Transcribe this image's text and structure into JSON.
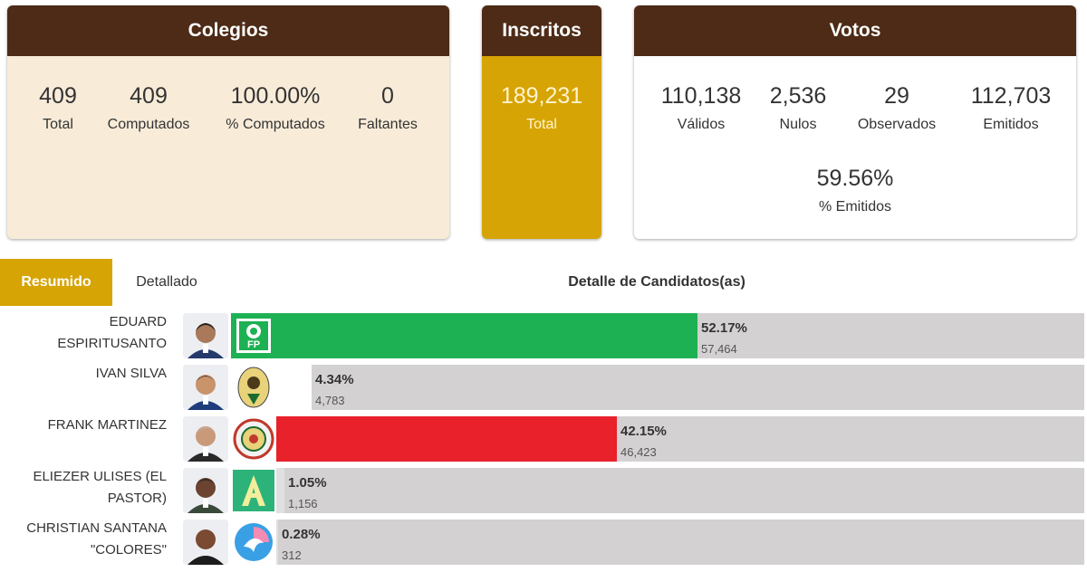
{
  "colegios": {
    "title": "Colegios",
    "stats": [
      {
        "value": "409",
        "label": "Total"
      },
      {
        "value": "409",
        "label": "Computados"
      },
      {
        "value": "100.00%",
        "label": "% Computados"
      },
      {
        "value": "0",
        "label": "Faltantes"
      }
    ]
  },
  "inscritos": {
    "title": "Inscritos",
    "value": "189,231",
    "label": "Total"
  },
  "votos": {
    "title": "Votos",
    "stats": [
      {
        "value": "110,138",
        "label": "Válidos"
      },
      {
        "value": "2,536",
        "label": "Nulos"
      },
      {
        "value": "29",
        "label": "Observados"
      },
      {
        "value": "112,703",
        "label": "Emitidos"
      }
    ],
    "emitidos_pct": {
      "value": "59.56%",
      "label": "% Emitidos"
    }
  },
  "tabs": {
    "active": "Resumido",
    "other": "Detallado",
    "title": "Detalle de Candidatos(as)"
  },
  "colors": {
    "header_brown": "#4d2b16",
    "gold": "#d6a404",
    "cream": "#f8ecd9",
    "track": "#d4d1d2"
  },
  "candidates": [
    {
      "name_line1": "EDUARD",
      "name_line2": "ESPIRITUSANTO",
      "pct": "52.17%",
      "votes": "57,464",
      "share": 0.5217,
      "bar_color": "#1eb153",
      "party_icon": "fp-party-logo"
    },
    {
      "name_line1": "IVAN SILVA",
      "name_line2": "",
      "pct": "4.34%",
      "votes": "4,783",
      "share": 0.0434,
      "bar_color": "#ffffff",
      "party_icon": "eagle-party-logo"
    },
    {
      "name_line1": "FRANK MARTINEZ",
      "name_line2": "",
      "pct": "42.15%",
      "votes": "46,423",
      "share": 0.4215,
      "bar_color": "#e8212b",
      "party_icon": "seal-party-logo"
    },
    {
      "name_line1": "ELIEZER ULISES (EL",
      "name_line2": "PASTOR)",
      "pct": "1.05%",
      "votes": "1,156",
      "share": 0.0105,
      "bar_color": "#e0e0e0",
      "party_icon": "letter-a-party-logo"
    },
    {
      "name_line1": "CHRISTIAN SANTANA",
      "name_line2": "\"COLORES\"",
      "pct": "0.28%",
      "votes": "312",
      "share": 0.0028,
      "bar_color": "#e0e0e0",
      "party_icon": "circle-bird-party-logo"
    }
  ]
}
